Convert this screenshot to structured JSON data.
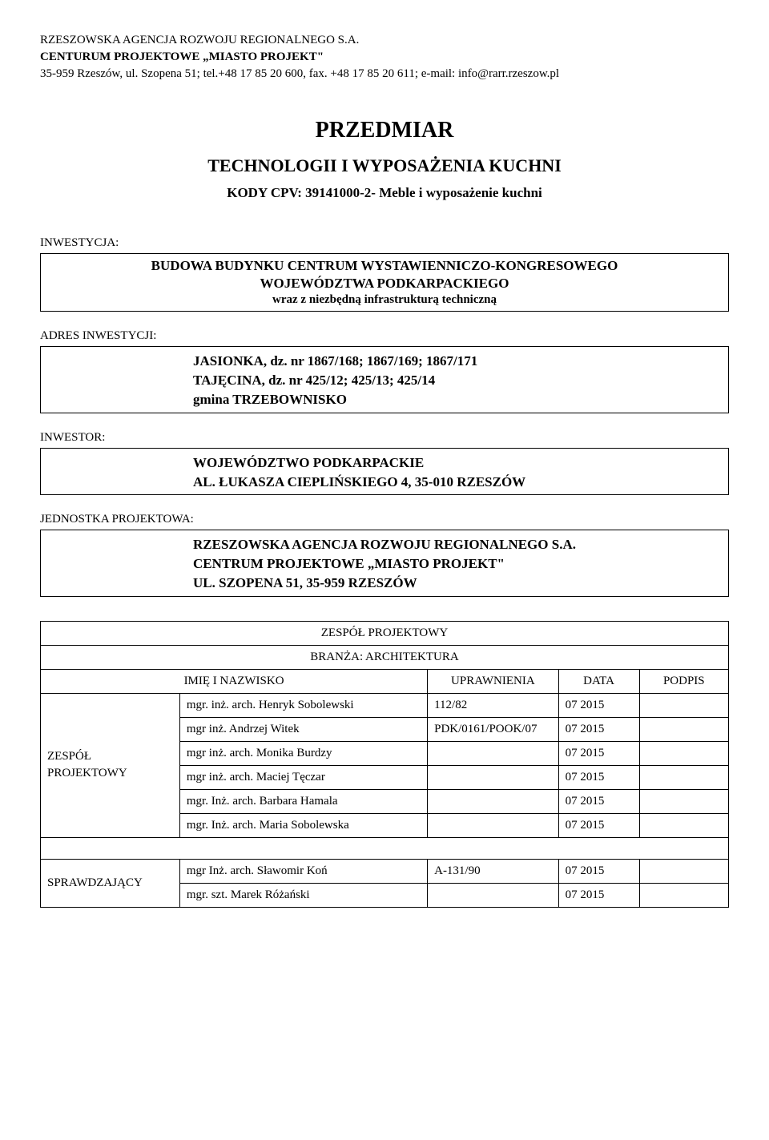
{
  "header": {
    "line1": "RZESZOWSKA AGENCJA ROZWOJU REGIONALNEGO S.A.",
    "line2": "CENTURUM PROJEKTOWE „MIASTO PROJEKT\"",
    "line3": "35-959 Rzeszów, ul. Szopena 51; tel.+48 17 85 20 600, fax. +48 17 85 20 611; e-mail: info@rarr.rzeszow.pl"
  },
  "title": {
    "main": "PRZEDMIAR",
    "sub": "TECHNOLOGII I WYPOSAŻENIA KUCHNI",
    "cpv": "KODY CPV: 39141000-2- Meble i wyposażenie kuchni"
  },
  "investment": {
    "label": "INWESTYCJA:",
    "line1": "BUDOWA BUDYNKU CENTRUM WYSTAWIENNICZO-KONGRESOWEGO",
    "line2": "WOJEWÓDZTWA PODKARPACKIEGO",
    "line3": "wraz z niezbędną infrastrukturą techniczną"
  },
  "address": {
    "label": "ADRES INWESTYCJI:",
    "line1": "JASIONKA, dz. nr 1867/168; 1867/169; 1867/171",
    "line2": "TAJĘCINA, dz. nr 425/12; 425/13; 425/14",
    "line3": "gmina TRZEBOWNISKO"
  },
  "investor": {
    "label": "INWESTOR:",
    "line1": "WOJEWÓDZTWO PODKARPACKIE",
    "line2": "AL. ŁUKASZA CIEPLIŃSKIEGO 4, 35-010 RZESZÓW"
  },
  "unit": {
    "label": "JEDNOSTKA PROJEKTOWA:",
    "line1": "RZESZOWSKA AGENCJA ROZWOJU REGIONALNEGO S.A.",
    "line2": "CENTRUM PROJEKTOWE „MIASTO PROJEKT\"",
    "line3": "UL. SZOPENA 51, 35-959 RZESZÓW"
  },
  "team_table": {
    "title1": "ZESPÓŁ PROJEKTOWY",
    "title2": "BRANŻA: ARCHITEKTURA",
    "headers": {
      "name": "IMIĘ I NAZWISKO",
      "credentials": "UPRAWNIENIA",
      "date": "DATA",
      "signature": "PODPIS"
    },
    "group1_label": "ZESPÓŁ PROJEKTOWY",
    "group1": [
      {
        "name": "mgr. inż. arch. Henryk Sobolewski",
        "cred": "112/82",
        "date": "07 2015"
      },
      {
        "name": "mgr inż. Andrzej Witek",
        "cred": "PDK/0161/POOK/07",
        "date": "07 2015",
        "small": true
      },
      {
        "name": "mgr inż. arch. Monika Burdzy",
        "cred": "",
        "date": "07 2015"
      },
      {
        "name": "mgr inż. arch. Maciej Tęczar",
        "cred": "",
        "date": "07 2015"
      },
      {
        "name": "mgr. Inż. arch. Barbara Hamala",
        "cred": "",
        "date": "07 2015"
      },
      {
        "name": "mgr. Inż. arch. Maria Sobolewska",
        "cred": "",
        "date": "07 2015"
      }
    ],
    "group2_label": "SPRAWDZAJĄCY",
    "group2": [
      {
        "name": "mgr Inż. arch. Sławomir Koń",
        "cred": "A-131/90",
        "date": "07 2015"
      },
      {
        "name": "mgr. szt. Marek Różański",
        "cred": "",
        "date": "07 2015"
      }
    ]
  }
}
